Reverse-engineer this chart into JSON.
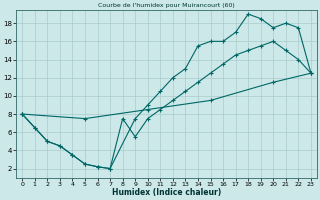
{
  "title": "Courbe de l'humidex pour Muirancourt (60)",
  "xlabel": "Humidex (Indice chaleur)",
  "bg_color": "#cce8e8",
  "grid_color": "#aacccc",
  "line_color": "#006666",
  "xlim": [
    -0.5,
    23.5
  ],
  "ylim": [
    1,
    19.5
  ],
  "xticks": [
    0,
    1,
    2,
    3,
    4,
    5,
    6,
    7,
    8,
    9,
    10,
    11,
    12,
    13,
    14,
    15,
    16,
    17,
    18,
    19,
    20,
    21,
    22,
    23
  ],
  "yticks": [
    2,
    4,
    6,
    8,
    10,
    12,
    14,
    16,
    18
  ],
  "line1_x": [
    0,
    1,
    2,
    3,
    4,
    5,
    6,
    7,
    9,
    10,
    11,
    12,
    13,
    14,
    15,
    16,
    17,
    18,
    19,
    20,
    21,
    22,
    23
  ],
  "line1_y": [
    8,
    6.5,
    5.0,
    4.5,
    3.5,
    2.5,
    2.2,
    2.0,
    7.5,
    9.0,
    10.5,
    12.0,
    13.0,
    15.5,
    16.0,
    16.0,
    17.0,
    19.0,
    18.5,
    17.5,
    18.0,
    17.5,
    12.5
  ],
  "line2_x": [
    0,
    1,
    2,
    3,
    4,
    5,
    6,
    7,
    8,
    9,
    10,
    11,
    12,
    13,
    14,
    15,
    16,
    17,
    18,
    19,
    20,
    21,
    22,
    23
  ],
  "line2_y": [
    8,
    6.5,
    5.0,
    4.5,
    3.5,
    2.5,
    2.2,
    2.0,
    7.5,
    5.5,
    7.5,
    8.5,
    9.5,
    10.5,
    11.5,
    12.5,
    13.5,
    14.5,
    15.0,
    15.5,
    16.0,
    15.0,
    14.0,
    12.5
  ],
  "line3_x": [
    0,
    5,
    10,
    15,
    20,
    23
  ],
  "line3_y": [
    8,
    7.5,
    8.5,
    9.5,
    11.5,
    12.5
  ]
}
